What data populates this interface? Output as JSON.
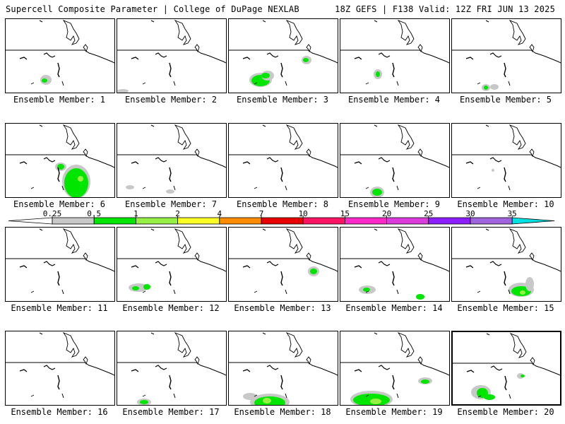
{
  "header": {
    "left_title": "Supercell Composite Parameter | College of DuPage NEXLAB",
    "right_title": "18Z GEFS | F138 Valid: 12Z FRI JUN 13 2025"
  },
  "colorbar": {
    "tick_labels": [
      "0.25",
      "0.5",
      "1",
      "2",
      "4",
      "7",
      "10",
      "15",
      "20",
      "25",
      "30",
      "35"
    ],
    "colors": [
      "#c8c8c8",
      "#00e600",
      "#96f046",
      "#ffff28",
      "#ff8c00",
      "#e60000",
      "#ff1464",
      "#ff28c8",
      "#dc3cdc",
      "#8c1eff",
      "#a064dc",
      "#00e1e1"
    ]
  },
  "ensemble": {
    "label_prefix": "Ensemble Member:",
    "members": [
      {
        "number": "1",
        "label": "Ensemble Member: 1"
      },
      {
        "number": "2",
        "label": "Ensemble Member: 2"
      },
      {
        "number": "3",
        "label": "Ensemble Member: 3"
      },
      {
        "number": "4",
        "label": "Ensemble Member: 4"
      },
      {
        "number": "5",
        "label": "Ensemble Member: 5"
      },
      {
        "number": "6",
        "label": "Ensemble Member: 6"
      },
      {
        "number": "7",
        "label": "Ensemble Member: 7"
      },
      {
        "number": "8",
        "label": "Ensemble Member: 8"
      },
      {
        "number": "9",
        "label": "Ensemble Member: 9"
      },
      {
        "number": "10",
        "label": "Ensemble Member: 10"
      },
      {
        "number": "11",
        "label": "Ensemble Member: 11"
      },
      {
        "number": "12",
        "label": "Ensemble Member: 12"
      },
      {
        "number": "13",
        "label": "Ensemble Member: 13"
      },
      {
        "number": "14",
        "label": "Ensemble Member: 14"
      },
      {
        "number": "15",
        "label": "Ensemble Member: 15"
      },
      {
        "number": "16",
        "label": "Ensemble Member: 16"
      },
      {
        "number": "17",
        "label": "Ensemble Member: 17"
      },
      {
        "number": "18",
        "label": "Ensemble Member: 18"
      },
      {
        "number": "19",
        "label": "Ensemble Member: 19"
      },
      {
        "number": "20",
        "label": "Ensemble Member: 20"
      }
    ]
  }
}
